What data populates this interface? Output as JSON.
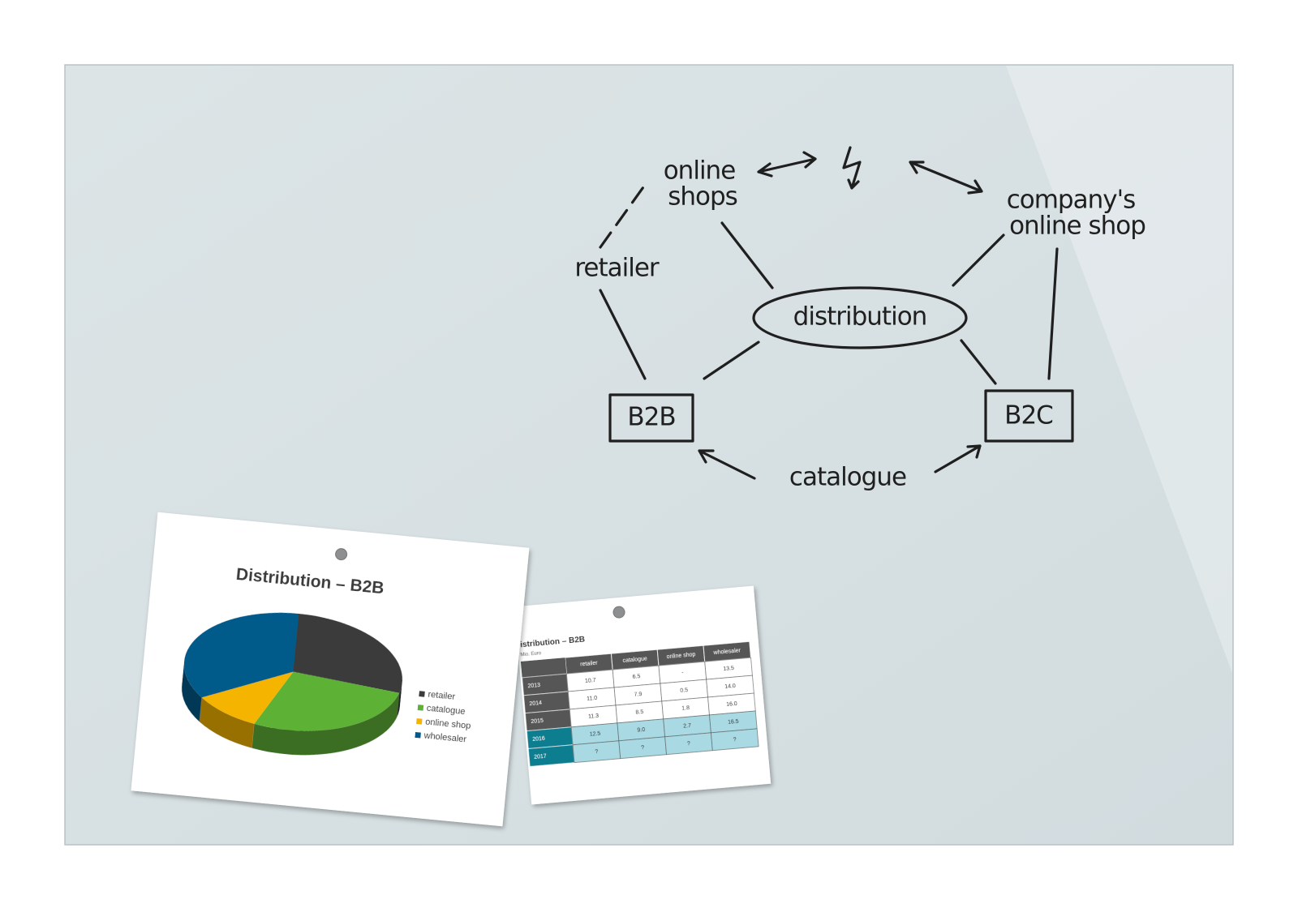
{
  "diagram": {
    "center": "distribution",
    "top_left": [
      "online",
      "shops"
    ],
    "top_right": [
      "company's",
      "online shop"
    ],
    "left": "retailer",
    "bottom_left": "B2B",
    "bottom_right": "B2C",
    "bottom": "catalogue"
  },
  "pie_sheet": {
    "chart_data": {
      "type": "pie",
      "title": "Distribution – B2B",
      "categories": [
        "retailer",
        "catalogue",
        "online shop",
        "wholesaler"
      ],
      "values": [
        28,
        27,
        10,
        35
      ],
      "colors": [
        "#3a3a3a",
        "#5db135",
        "#f5b400",
        "#035a8a"
      ]
    }
  },
  "table_sheet": {
    "title": "Distribution – B2B",
    "subtitle": "in Mio. Euro",
    "table": {
      "header": [
        "retailer",
        "catalogue",
        "online shop",
        "wholesaler"
      ],
      "rows": [
        [
          "2013",
          "10.7",
          "6.5",
          "-",
          "13.5"
        ],
        [
          "2014",
          "11.0",
          "7.9",
          "0.5",
          "14.0"
        ],
        [
          "2015",
          "11.3",
          "8.5",
          "1.8",
          "16.0"
        ],
        [
          "2016",
          "12.5",
          "9.0",
          "2.7",
          "16.5"
        ],
        [
          "2017",
          "?",
          "?",
          "?",
          "?"
        ]
      ]
    }
  }
}
